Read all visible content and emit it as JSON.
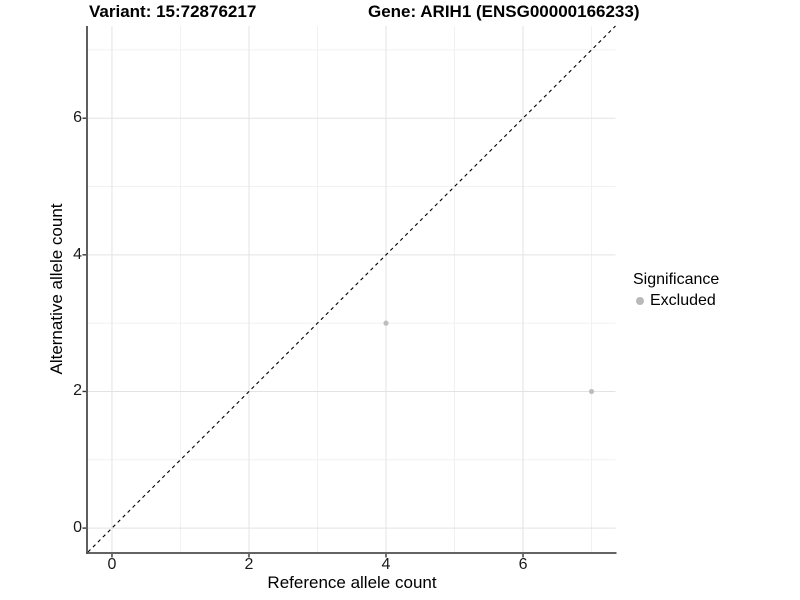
{
  "chart_data": {
    "type": "scatter",
    "title_left": "Variant: 15:72876217",
    "title_right": "Gene: ARIH1 (ENSG00000166233)",
    "xlabel": "Reference allele count",
    "ylabel": "Alternative allele count",
    "xlim": [
      -0.35,
      7.35
    ],
    "ylim": [
      -0.35,
      7.35
    ],
    "x_ticks": [
      0,
      2,
      4,
      6
    ],
    "y_ticks": [
      0,
      2,
      4,
      6
    ],
    "grid": {
      "on": true,
      "major": [
        0,
        2,
        4,
        6
      ],
      "minor": [
        1,
        3,
        5,
        7
      ]
    },
    "reference_line": {
      "kind": "y=x",
      "style": "dashed",
      "color": "#000000"
    },
    "series": [
      {
        "name": "Excluded",
        "color": "#bdbdbd",
        "points": [
          [
            4,
            3
          ],
          [
            7,
            2
          ]
        ]
      }
    ],
    "legend": {
      "position": "right",
      "title": "Significance",
      "items": [
        {
          "label": "Excluded",
          "color": "#b9b9b9"
        }
      ]
    },
    "colors": {
      "grid_major": "#e3e3e3",
      "grid_minor": "#f1f1f1",
      "axis_line": "#4d4d4d",
      "tick_mark": "#333333",
      "background": "#ffffff"
    }
  }
}
